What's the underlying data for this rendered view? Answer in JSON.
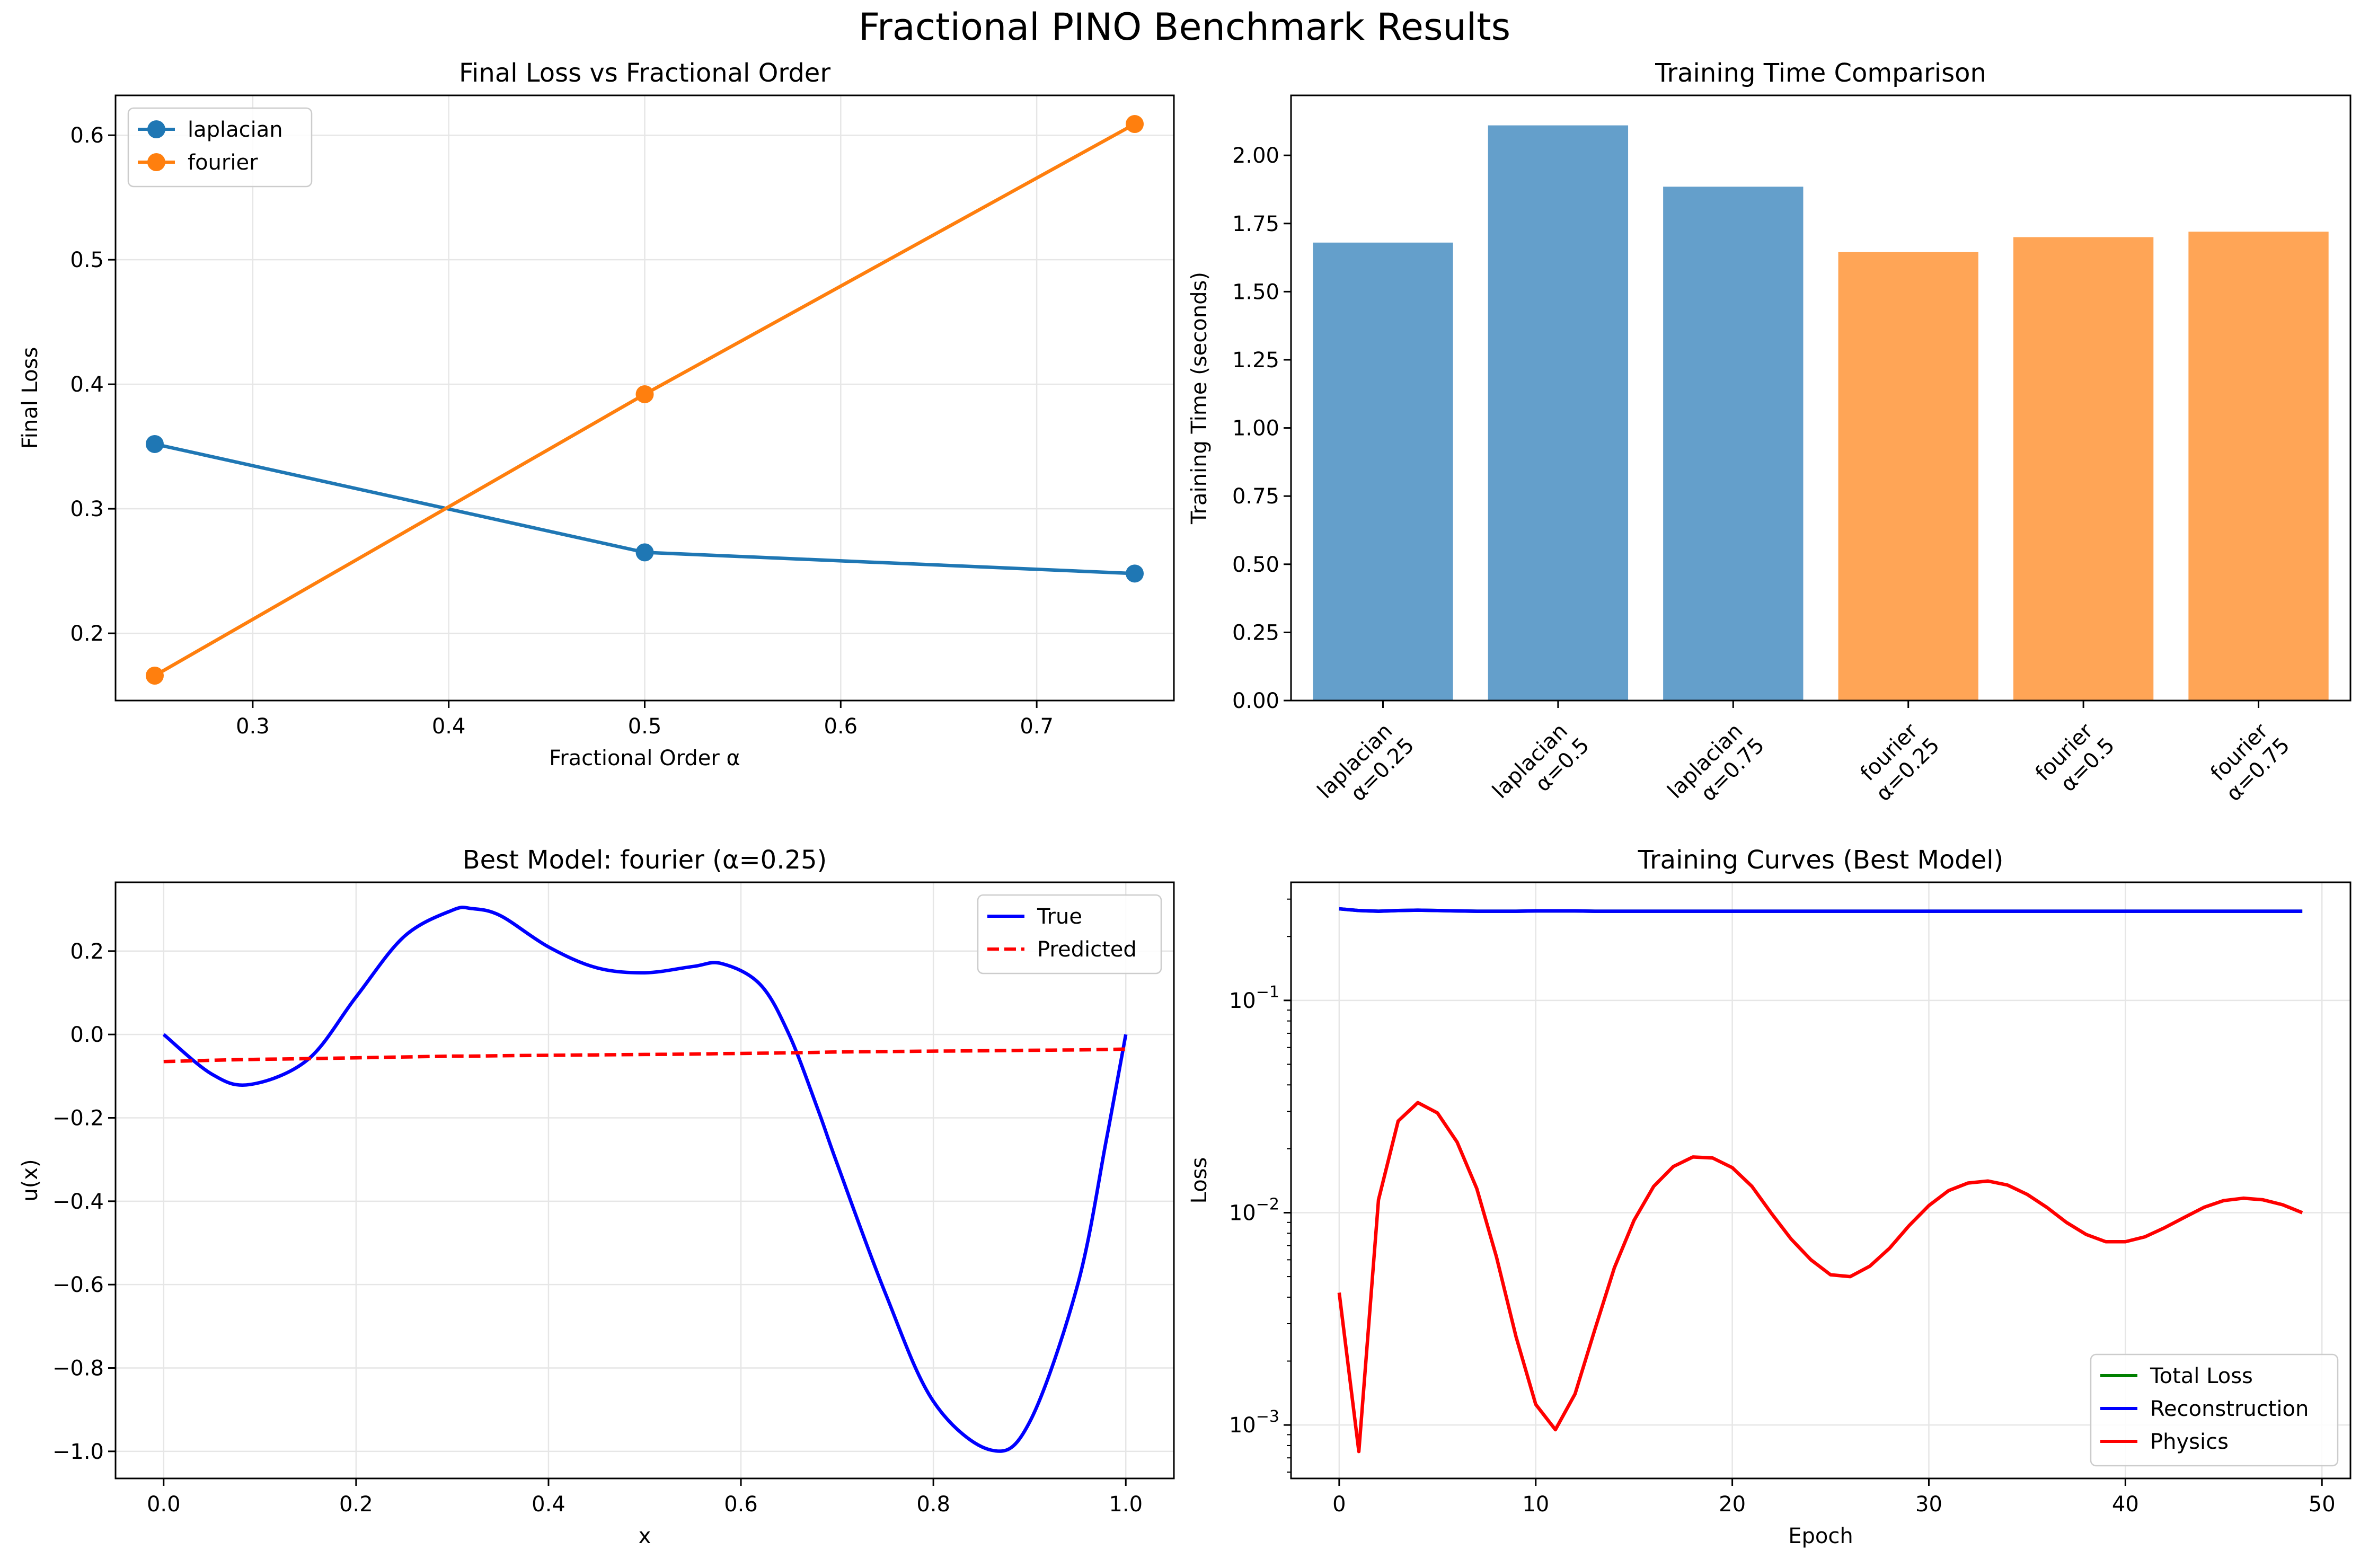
{
  "figure_title": "Fractional PINO Benchmark Results",
  "colors": {
    "laplacian": "#1f77b4",
    "fourier": "#ff7f0e",
    "laplacian_bar": "#649fcb",
    "fourier_bar": "#ffa556",
    "true": "#0000ff",
    "predicted": "#ff0000",
    "total": "#008000",
    "reconstruction": "#0000ff",
    "physics": "#ff0000",
    "grid": "#e6e6e6"
  },
  "chart_data": [
    {
      "id": "loss-vs-alpha",
      "type": "line",
      "title": "Final Loss vs Fractional Order",
      "xlabel": "Fractional Order α",
      "ylabel": "Final Loss",
      "xlim": [
        0.23,
        0.77
      ],
      "ylim": [
        0.146,
        0.632
      ],
      "xticks": [
        0.3,
        0.4,
        0.5,
        0.6,
        0.7
      ],
      "xtick_labels": [
        "0.3",
        "0.4",
        "0.5",
        "0.6",
        "0.7"
      ],
      "yticks": [
        0.2,
        0.3,
        0.4,
        0.5,
        0.6
      ],
      "ytick_labels": [
        "0.2",
        "0.3",
        "0.4",
        "0.5",
        "0.6"
      ],
      "grid": true,
      "legend": "upper-left",
      "x": [
        0.25,
        0.5,
        0.75
      ],
      "series": [
        {
          "name": "laplacian",
          "values": [
            0.352,
            0.265,
            0.248
          ],
          "color": "#1f77b4",
          "marker": "circle"
        },
        {
          "name": "fourier",
          "values": [
            0.166,
            0.392,
            0.609
          ],
          "color": "#ff7f0e",
          "marker": "circle"
        }
      ]
    },
    {
      "id": "training-time",
      "type": "bar",
      "title": "Training Time Comparison",
      "xlabel": "",
      "ylabel": "Training Time (seconds)",
      "ylim": [
        0,
        2.22
      ],
      "yticks": [
        0,
        0.25,
        0.5,
        0.75,
        1.0,
        1.25,
        1.5,
        1.75,
        2.0
      ],
      "ytick_labels": [
        "0.00",
        "0.25",
        "0.50",
        "0.75",
        "1.00",
        "1.25",
        "1.50",
        "1.75",
        "2.00"
      ],
      "grid": false,
      "categories": [
        {
          "line1": "laplacian",
          "line2": "α=0.25"
        },
        {
          "line1": "laplacian",
          "line2": "α=0.5"
        },
        {
          "line1": "laplacian",
          "line2": "α=0.75"
        },
        {
          "line1": "fourier",
          "line2": "α=0.25"
        },
        {
          "line1": "fourier",
          "line2": "α=0.5"
        },
        {
          "line1": "fourier",
          "line2": "α=0.75"
        }
      ],
      "values": [
        1.68,
        2.11,
        1.885,
        1.645,
        1.7,
        1.72
      ],
      "bar_colors": [
        "#649fcb",
        "#649fcb",
        "#649fcb",
        "#ffa556",
        "#ffa556",
        "#ffa556"
      ]
    },
    {
      "id": "best-model",
      "type": "line",
      "title": "Best Model: fourier (α=0.25)",
      "xlabel": "x",
      "ylabel": "u(x)",
      "xlim": [
        -0.05,
        1.05
      ],
      "ylim": [
        -1.065,
        0.365
      ],
      "xticks": [
        0.0,
        0.2,
        0.4,
        0.6,
        0.8,
        1.0
      ],
      "xtick_labels": [
        "0.0",
        "0.2",
        "0.4",
        "0.6",
        "0.8",
        "1.0"
      ],
      "yticks": [
        -1.0,
        -0.8,
        -0.6,
        -0.4,
        -0.2,
        0.0,
        0.2
      ],
      "ytick_labels": [
        "−1.0",
        "−0.8",
        "−0.6",
        "−0.4",
        "−0.2",
        "0.0",
        "0.2"
      ],
      "grid": true,
      "legend": "upper-right",
      "x": [
        0.0,
        0.05,
        0.09,
        0.15,
        0.2,
        0.25,
        0.3,
        0.32,
        0.35,
        0.4,
        0.45,
        0.5,
        0.55,
        0.58,
        0.62,
        0.65,
        0.68,
        0.7,
        0.75,
        0.8,
        0.86,
        0.9,
        0.95,
        0.98,
        1.0
      ],
      "series": [
        {
          "name": "True",
          "values": [
            0.0,
            -0.095,
            -0.12,
            -0.06,
            0.09,
            0.235,
            0.298,
            0.302,
            0.285,
            0.21,
            0.16,
            0.148,
            0.163,
            0.17,
            0.12,
            0.0,
            -0.18,
            -0.31,
            -0.62,
            -0.88,
            -0.997,
            -0.93,
            -0.6,
            -0.25,
            0.0
          ],
          "color": "#0000ff",
          "dash": "solid"
        },
        {
          "name": "Predicted",
          "values": [
            -0.065,
            -0.062,
            -0.06,
            -0.058,
            -0.056,
            -0.054,
            -0.052,
            -0.052,
            -0.051,
            -0.05,
            -0.049,
            -0.048,
            -0.047,
            -0.046,
            -0.045,
            -0.044,
            -0.043,
            -0.042,
            -0.041,
            -0.04,
            -0.039,
            -0.038,
            -0.037,
            -0.036,
            -0.035
          ],
          "color": "#ff0000",
          "dash": "dashed"
        }
      ]
    },
    {
      "id": "training-curves",
      "type": "line",
      "title": "Training Curves (Best Model)",
      "xlabel": "Epoch",
      "ylabel": "Loss",
      "yscale": "log",
      "xlim": [
        -2.45,
        51.45
      ],
      "ylim": [
        0.00056,
        0.36
      ],
      "xticks": [
        0,
        10,
        20,
        30,
        40,
        50
      ],
      "xtick_labels": [
        "0",
        "10",
        "20",
        "30",
        "40",
        "50"
      ],
      "yticks": [
        0.001,
        0.01,
        0.1
      ],
      "ytick_labels": [
        "10",
        "10",
        "10"
      ],
      "ytick_exponents": [
        "−3",
        "−2",
        "−1"
      ],
      "grid": true,
      "legend": "lower-right",
      "x": [
        0,
        1,
        2,
        3,
        4,
        5,
        6,
        7,
        8,
        9,
        10,
        11,
        12,
        13,
        14,
        15,
        16,
        17,
        18,
        19,
        20,
        21,
        22,
        23,
        24,
        25,
        26,
        27,
        28,
        29,
        30,
        31,
        32,
        33,
        34,
        35,
        36,
        37,
        38,
        39,
        40,
        41,
        42,
        43,
        44,
        45,
        46,
        47,
        48,
        49
      ],
      "series": [
        {
          "name": "Total Loss",
          "values": [
            0.27,
            0.265,
            0.263,
            0.265,
            0.266,
            0.265,
            0.264,
            0.263,
            0.263,
            0.263,
            0.264,
            0.264,
            0.264,
            0.263,
            0.263,
            0.263,
            0.263,
            0.263,
            0.263,
            0.263,
            0.263,
            0.263,
            0.263,
            0.263,
            0.263,
            0.263,
            0.263,
            0.263,
            0.263,
            0.263,
            0.263,
            0.263,
            0.263,
            0.263,
            0.263,
            0.263,
            0.263,
            0.263,
            0.263,
            0.263,
            0.263,
            0.263,
            0.263,
            0.263,
            0.263,
            0.263,
            0.263,
            0.263,
            0.263,
            0.263
          ],
          "color": "#008000"
        },
        {
          "name": "Reconstruction",
          "values": [
            0.27,
            0.265,
            0.263,
            0.265,
            0.266,
            0.265,
            0.264,
            0.263,
            0.263,
            0.263,
            0.264,
            0.264,
            0.264,
            0.263,
            0.263,
            0.263,
            0.263,
            0.263,
            0.263,
            0.263,
            0.263,
            0.263,
            0.263,
            0.263,
            0.263,
            0.263,
            0.263,
            0.263,
            0.263,
            0.263,
            0.263,
            0.263,
            0.263,
            0.263,
            0.263,
            0.263,
            0.263,
            0.263,
            0.263,
            0.263,
            0.263,
            0.263,
            0.263,
            0.263,
            0.263,
            0.263,
            0.263,
            0.263,
            0.263,
            0.263
          ],
          "color": "#0000ff"
        },
        {
          "name": "Physics",
          "values": [
            0.0042,
            0.00075,
            0.0115,
            0.027,
            0.033,
            0.0295,
            0.0215,
            0.013,
            0.0062,
            0.0026,
            0.00125,
            0.00095,
            0.0014,
            0.0028,
            0.0055,
            0.0092,
            0.0133,
            0.0165,
            0.0183,
            0.0181,
            0.0163,
            0.0133,
            0.0099,
            0.0075,
            0.006,
            0.0051,
            0.005,
            0.0056,
            0.0068,
            0.0087,
            0.0108,
            0.0127,
            0.0138,
            0.0141,
            0.0135,
            0.0122,
            0.0106,
            0.009,
            0.0079,
            0.0073,
            0.0073,
            0.0077,
            0.0085,
            0.0095,
            0.0106,
            0.0114,
            0.0117,
            0.0115,
            0.0109,
            0.01
          ],
          "color": "#ff0000"
        }
      ]
    }
  ]
}
